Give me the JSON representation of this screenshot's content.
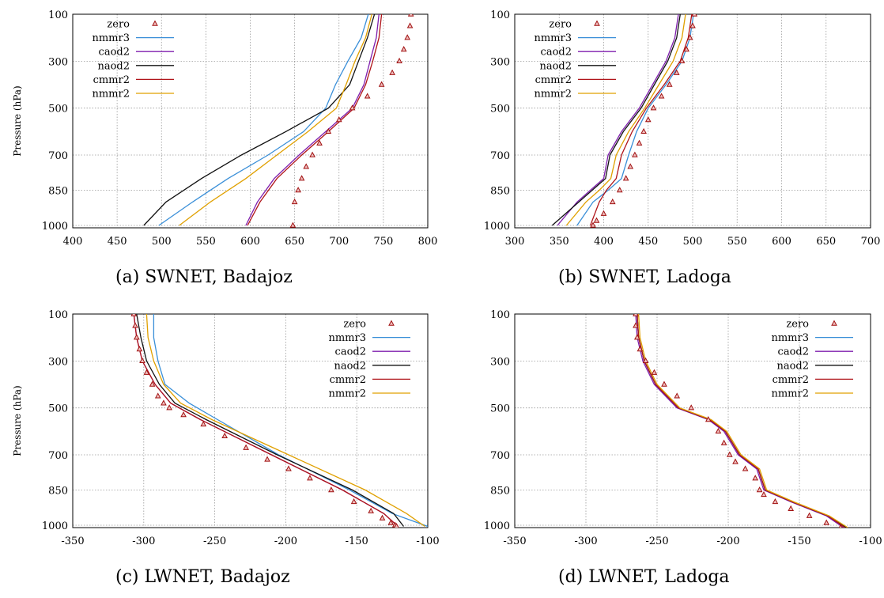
{
  "colors": {
    "zero": "#a01010",
    "zero_fill": "#f0c0c0",
    "nmmr3": "#3a8fd8",
    "caod2": "#7f1fae",
    "naod2": "#111111",
    "cmmr2": "#b0151a",
    "nmmr2": "#e0a000",
    "grid": "#9a9a9a"
  },
  "chart_data": [
    {
      "id": "a",
      "type": "line",
      "caption": "(a) SWNET, Badajoz",
      "ylabel": "Pressure (hPa)",
      "xlim": [
        400,
        800
      ],
      "xticks": [
        "400",
        "450",
        "500",
        "550",
        "600",
        "650",
        "700",
        "750",
        "800"
      ],
      "yticks": [
        "100",
        "300",
        "500",
        "700",
        "850",
        "1000"
      ],
      "legend_position": "top-left",
      "series": [
        {
          "name": "zero",
          "marker": "triangle",
          "x": [
            781,
            780,
            777,
            773,
            768,
            760,
            748,
            732,
            715,
            700,
            688,
            678,
            670,
            663,
            658,
            654,
            650,
            648
          ],
          "y": [
            100,
            150,
            200,
            250,
            300,
            350,
            400,
            450,
            500,
            550,
            600,
            650,
            700,
            750,
            800,
            850,
            900,
            1000
          ]
        },
        {
          "name": "nmmr3",
          "x": [
            733,
            725,
            710,
            696,
            685,
            660,
            620,
            575,
            535,
            497
          ],
          "y": [
            100,
            200,
            300,
            400,
            500,
            600,
            700,
            800,
            900,
            1000
          ]
        },
        {
          "name": "caod2",
          "x": [
            745,
            742,
            735,
            728,
            715,
            685,
            655,
            627,
            608,
            595
          ],
          "y": [
            100,
            200,
            300,
            400,
            500,
            600,
            700,
            800,
            900,
            1000
          ]
        },
        {
          "name": "naod2",
          "x": [
            740,
            732,
            722,
            712,
            688,
            640,
            590,
            545,
            505,
            480
          ],
          "y": [
            100,
            200,
            300,
            400,
            500,
            600,
            700,
            800,
            900,
            1000
          ]
        },
        {
          "name": "cmmr2",
          "x": [
            748,
            745,
            738,
            730,
            717,
            688,
            658,
            630,
            611,
            597
          ],
          "y": [
            100,
            200,
            300,
            400,
            500,
            600,
            700,
            800,
            900,
            1000
          ]
        },
        {
          "name": "nmmr2",
          "x": [
            737,
            730,
            718,
            708,
            697,
            665,
            630,
            595,
            555,
            520
          ],
          "y": [
            100,
            200,
            300,
            400,
            500,
            600,
            700,
            800,
            900,
            1000
          ]
        }
      ]
    },
    {
      "id": "b",
      "type": "line",
      "caption": "(b) SWNET, Ladoga",
      "ylabel": "",
      "xlim": [
        300,
        700
      ],
      "xticks": [
        "300",
        "350",
        "400",
        "450",
        "500",
        "550",
        "600",
        "650",
        "700"
      ],
      "yticks": [
        "100",
        "300",
        "500",
        "700",
        "850",
        "1000"
      ],
      "legend_position": "top-left",
      "series": [
        {
          "name": "zero",
          "marker": "triangle",
          "x": [
            502,
            500,
            497,
            493,
            488,
            482,
            474,
            465,
            456,
            450,
            445,
            440,
            435,
            430,
            425,
            418,
            410,
            400,
            392,
            388
          ],
          "y": [
            100,
            150,
            200,
            250,
            300,
            350,
            400,
            450,
            500,
            550,
            600,
            650,
            700,
            750,
            800,
            850,
            900,
            950,
            980,
            1000
          ]
        },
        {
          "name": "nmmr3",
          "x": [
            501,
            497,
            488,
            470,
            450,
            437,
            428,
            420,
            405,
            388,
            370
          ],
          "y": [
            100,
            200,
            300,
            400,
            500,
            600,
            700,
            800,
            850,
            900,
            1000
          ]
        },
        {
          "name": "caod2",
          "x": [
            484,
            480,
            470,
            455,
            440,
            420,
            405,
            400,
            385,
            370,
            348
          ],
          "y": [
            100,
            200,
            300,
            400,
            500,
            600,
            700,
            800,
            850,
            900,
            1000
          ]
        },
        {
          "name": "naod2",
          "x": [
            486,
            482,
            472,
            457,
            442,
            422,
            407,
            402,
            387,
            372,
            342
          ],
          "y": [
            100,
            200,
            300,
            400,
            500,
            600,
            700,
            800,
            850,
            900,
            1000
          ]
        },
        {
          "name": "cmmr2",
          "x": [
            499,
            495,
            486,
            468,
            448,
            432,
            420,
            414,
            403,
            395,
            385
          ],
          "y": [
            100,
            200,
            300,
            400,
            500,
            600,
            700,
            800,
            850,
            900,
            1000
          ]
        },
        {
          "name": "nmmr2",
          "x": [
            492,
            488,
            478,
            462,
            446,
            428,
            414,
            408,
            395,
            380,
            358
          ],
          "y": [
            100,
            200,
            300,
            400,
            500,
            600,
            700,
            800,
            850,
            900,
            1000
          ]
        }
      ]
    },
    {
      "id": "c",
      "type": "line",
      "caption": "(c) LWNET, Badajoz",
      "ylabel": "Pressure (hPa)",
      "xlim": [
        -350,
        -100
      ],
      "xticks": [
        "-350",
        "-300",
        "-250",
        "-200",
        "-150",
        "-100"
      ],
      "yticks": [
        "100",
        "300",
        "500",
        "700",
        "850",
        "1000"
      ],
      "legend_position": "top-right",
      "series": [
        {
          "name": "zero",
          "marker": "triangle",
          "x": [
            -307,
            -306,
            -305,
            -303,
            -301,
            -298,
            -294,
            -290,
            -286,
            -282,
            -272,
            -258,
            -243,
            -228,
            -213,
            -198,
            -183,
            -168,
            -152,
            -140,
            -132,
            -126,
            -123,
            -122
          ],
          "y": [
            100,
            150,
            200,
            250,
            300,
            350,
            400,
            450,
            480,
            500,
            530,
            570,
            620,
            670,
            720,
            760,
            800,
            850,
            900,
            940,
            970,
            990,
            1000,
            1005
          ]
        },
        {
          "name": "nmmr3",
          "x": [
            -293,
            -293,
            -290,
            -285,
            -268,
            -248,
            -205,
            -155,
            -125,
            -100
          ],
          "y": [
            100,
            200,
            300,
            400,
            480,
            550,
            700,
            850,
            950,
            1005
          ]
        },
        {
          "name": "caod2",
          "x": [
            -307,
            -305,
            -301,
            -292,
            -281,
            -260,
            -210,
            -160,
            -131,
            -121
          ],
          "y": [
            100,
            200,
            300,
            400,
            480,
            550,
            700,
            850,
            950,
            1005
          ]
        },
        {
          "name": "naod2",
          "x": [
            -305,
            -302,
            -298,
            -289,
            -278,
            -256,
            -206,
            -153,
            -124,
            -117
          ],
          "y": [
            100,
            200,
            300,
            400,
            480,
            550,
            700,
            850,
            950,
            1005
          ]
        },
        {
          "name": "cmmr2",
          "x": [
            -307,
            -305,
            -301,
            -292,
            -281,
            -260,
            -210,
            -160,
            -131,
            -121
          ],
          "y": [
            100,
            200,
            300,
            400,
            480,
            550,
            700,
            850,
            950,
            1005
          ]
        },
        {
          "name": "nmmr2",
          "x": [
            -298,
            -297,
            -293,
            -286,
            -274,
            -252,
            -198,
            -144,
            -115,
            -102
          ],
          "y": [
            100,
            200,
            300,
            400,
            480,
            550,
            700,
            850,
            950,
            1005
          ]
        }
      ]
    },
    {
      "id": "d",
      "type": "line",
      "caption": "(d) LWNET, Ladoga",
      "ylabel": "",
      "xlim": [
        -350,
        -100
      ],
      "xticks": [
        "-350",
        "-300",
        "-250",
        "-200",
        "-150",
        "-100"
      ],
      "yticks": [
        "100",
        "300",
        "500",
        "700",
        "850",
        "1000"
      ],
      "legend_position": "top-right",
      "series": [
        {
          "name": "zero",
          "marker": "triangle",
          "x": [
            -265,
            -265,
            -264,
            -262,
            -258,
            -252,
            -245,
            -236,
            -226,
            -214,
            -207,
            -203,
            -199,
            -195,
            -188,
            -181,
            -178,
            -175,
            -167,
            -156,
            -143,
            -131,
            -121
          ],
          "y": [
            100,
            150,
            200,
            250,
            300,
            350,
            400,
            450,
            500,
            550,
            600,
            650,
            700,
            730,
            760,
            800,
            850,
            870,
            900,
            930,
            960,
            990,
            1010
          ]
        },
        {
          "name": "nmmr3",
          "x": [
            -264,
            -263,
            -259,
            -251,
            -235,
            -213,
            -202,
            -192,
            -179,
            -174,
            -155,
            -130,
            -118
          ],
          "y": [
            100,
            200,
            300,
            400,
            500,
            550,
            600,
            700,
            760,
            850,
            900,
            960,
            1010
          ]
        },
        {
          "name": "caod2",
          "x": [
            -265,
            -264,
            -260,
            -252,
            -236,
            -214,
            -203,
            -193,
            -180,
            -175,
            -156,
            -131,
            -119
          ],
          "y": [
            100,
            200,
            300,
            400,
            500,
            550,
            600,
            700,
            760,
            850,
            900,
            960,
            1010
          ]
        },
        {
          "name": "naod2",
          "x": [
            -264,
            -263,
            -259,
            -251,
            -235,
            -213,
            -202,
            -192,
            -179,
            -174,
            -155,
            -130,
            -117
          ],
          "y": [
            100,
            200,
            300,
            400,
            500,
            550,
            600,
            700,
            760,
            850,
            900,
            960,
            1010
          ]
        },
        {
          "name": "cmmr2",
          "x": [
            -264,
            -263,
            -259,
            -251,
            -235,
            -213,
            -202,
            -192,
            -179,
            -174,
            -155,
            -130,
            -118
          ],
          "y": [
            100,
            200,
            300,
            400,
            500,
            550,
            600,
            700,
            760,
            850,
            900,
            960,
            1010
          ]
        },
        {
          "name": "nmmr2",
          "x": [
            -263,
            -262,
            -258,
            -250,
            -234,
            -212,
            -201,
            -191,
            -178,
            -173,
            -154,
            -129,
            -116
          ],
          "y": [
            100,
            200,
            300,
            400,
            500,
            550,
            600,
            700,
            760,
            850,
            900,
            960,
            1010
          ]
        }
      ]
    }
  ]
}
